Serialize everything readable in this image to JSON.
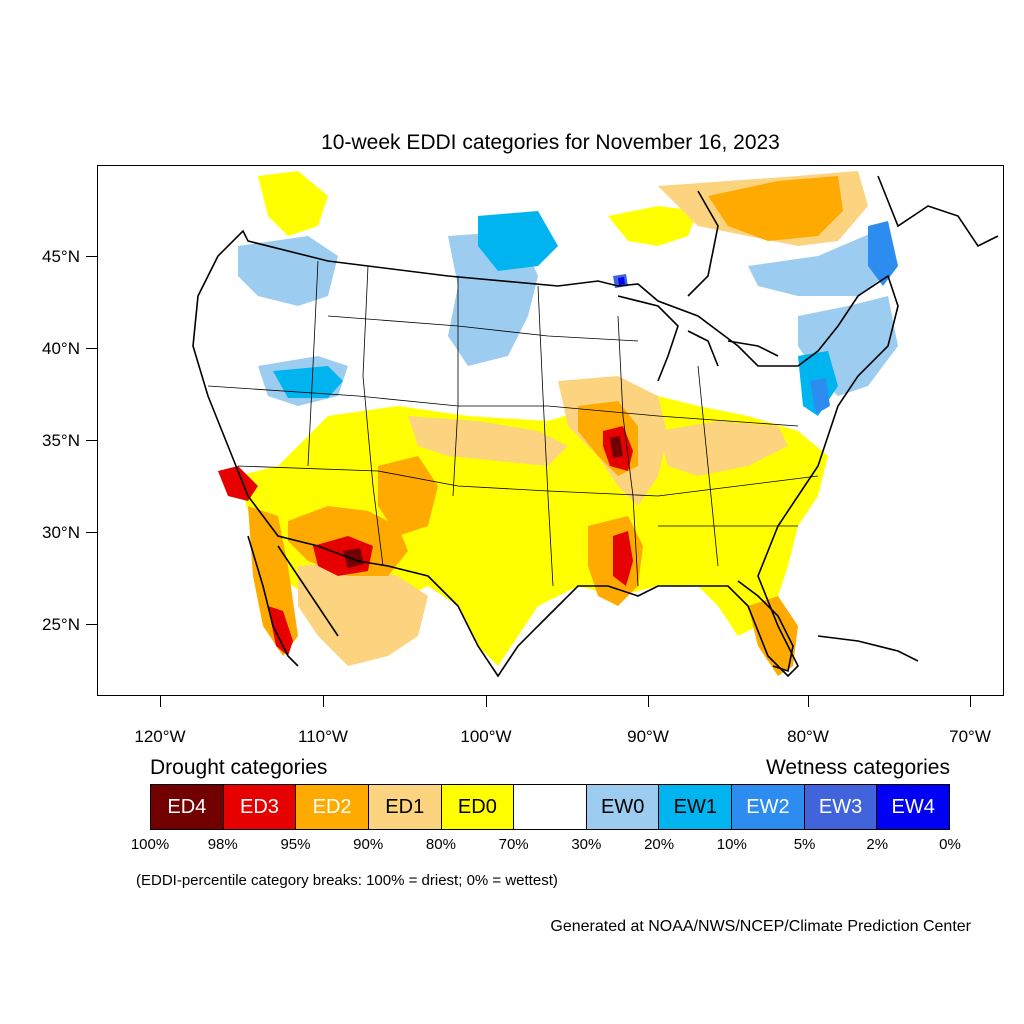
{
  "title": "10-week EDDI categories for November 16, 2023",
  "map": {
    "lat_labels": [
      "45°N",
      "40°N",
      "35°N",
      "30°N",
      "25°N"
    ],
    "lon_labels": [
      "120°W",
      "110°W",
      "100°W",
      "90°W",
      "80°W",
      "70°W"
    ],
    "colors": {
      "ED4": "#730000",
      "ED3": "#e60000",
      "ED2": "#ffaa00",
      "ED1": "#fcd37f",
      "ED0": "#ffff00",
      "EW0": "#9ccdf0",
      "EW1": "#00b4f0",
      "EW2": "#2d8cf0",
      "EW3": "#4164dc",
      "EW4": "#0000f5"
    }
  },
  "legend": {
    "drought_heading": "Drought categories",
    "wetness_heading": "Wetness categories",
    "categories": [
      {
        "label": "ED4",
        "color": "#730000",
        "text_color": "#ffffff"
      },
      {
        "label": "ED3",
        "color": "#e60000",
        "text_color": "#ffffff"
      },
      {
        "label": "ED2",
        "color": "#ffaa00",
        "text_color": "#ffffff"
      },
      {
        "label": "ED1",
        "color": "#fcd37f",
        "text_color": "#000000"
      },
      {
        "label": "ED0",
        "color": "#ffff00",
        "text_color": "#000000"
      },
      {
        "label": "",
        "color": "#ffffff",
        "text_color": "#000000"
      },
      {
        "label": "EW0",
        "color": "#9ccdf0",
        "text_color": "#000000"
      },
      {
        "label": "EW1",
        "color": "#00b4f0",
        "text_color": "#000000"
      },
      {
        "label": "EW2",
        "color": "#2d8cf0",
        "text_color": "#ffffff"
      },
      {
        "label": "EW3",
        "color": "#4164dc",
        "text_color": "#ffffff"
      },
      {
        "label": "EW4",
        "color": "#0000f5",
        "text_color": "#ffffff"
      }
    ],
    "percentiles": [
      "100%",
      "98%",
      "95%",
      "90%",
      "80%",
      "70%",
      "30%",
      "20%",
      "10%",
      "5%",
      "2%",
      "0%"
    ]
  },
  "note": "(EDDI-percentile category breaks: 100% = driest; 0% = wettest)",
  "credit": "Generated at NOAA/NWS/NCEP/Climate Prediction Center"
}
